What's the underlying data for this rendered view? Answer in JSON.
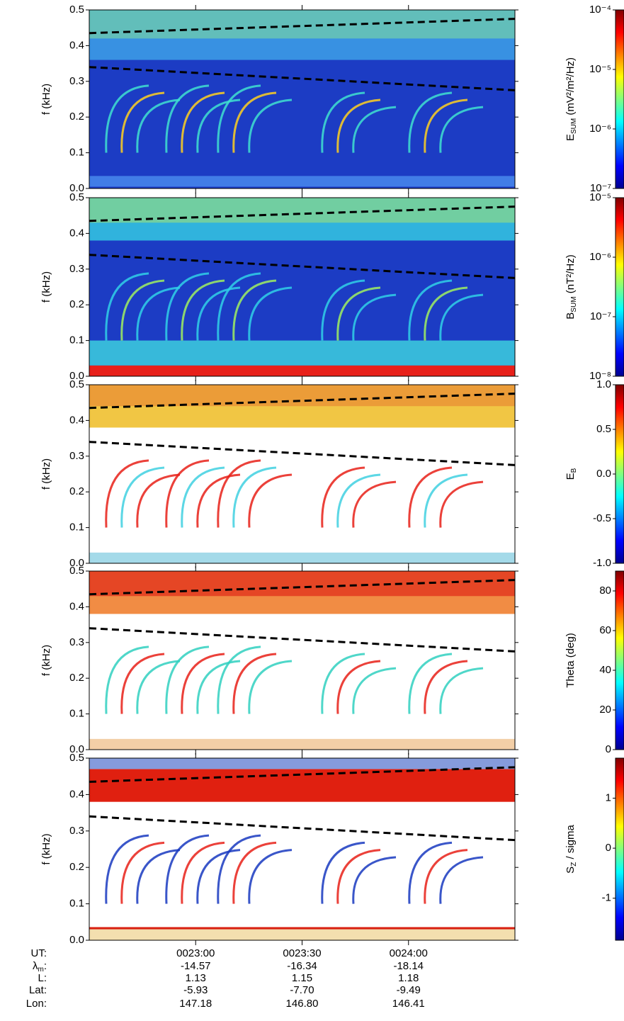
{
  "chart_data": [
    {
      "type": "spectrogram",
      "ylabel": "f (kHz)",
      "ylim": [
        0,
        0.5
      ],
      "yticks": [
        {
          "value": 0,
          "label": "0.0"
        },
        0.1,
        0.2,
        0.3,
        0.4,
        0.5
      ],
      "xlim": [
        30,
        150
      ],
      "colorbar": {
        "label": {
          "main": "E",
          "sub": "SUM",
          "rest": " (mV²/m²/Hz)"
        },
        "scale": "log",
        "lim": [
          1e-07,
          0.0001
        ],
        "ticks": [
          {
            "value": 1e-07,
            "label": "10⁻⁷"
          },
          {
            "value": 1e-06,
            "label": "10⁻⁶"
          },
          {
            "value": 1e-05,
            "label": "10⁻⁵"
          },
          {
            "value": 0.0001,
            "label": "10⁻⁴"
          }
        ]
      },
      "reference_lines": [
        {
          "x": [
            30,
            150
          ],
          "values": [
            0.435,
            0.475
          ]
        },
        {
          "x": [
            30,
            150
          ],
          "values": [
            0.34,
            0.275
          ]
        }
      ]
    },
    {
      "type": "spectrogram",
      "ylabel": "f (kHz)",
      "ylim": [
        0,
        0.5
      ],
      "yticks": [
        {
          "value": 0,
          "label": "0.0"
        },
        0.1,
        0.2,
        0.3,
        0.4,
        0.5
      ],
      "xlim": [
        30,
        150
      ],
      "colorbar": {
        "label": {
          "main": "B",
          "sub": "SUM",
          "rest": " (nT²/Hz)"
        },
        "scale": "log",
        "lim": [
          1e-08,
          1e-05
        ],
        "ticks": [
          {
            "value": 1e-08,
            "label": "10⁻⁸"
          },
          {
            "value": 1e-07,
            "label": "10⁻⁷"
          },
          {
            "value": 1e-06,
            "label": "10⁻⁶"
          },
          {
            "value": 1e-05,
            "label": "10⁻⁵"
          }
        ]
      },
      "reference_lines": [
        {
          "x": [
            30,
            150
          ],
          "values": [
            0.435,
            0.475
          ]
        },
        {
          "x": [
            30,
            150
          ],
          "values": [
            0.34,
            0.275
          ]
        }
      ]
    },
    {
      "type": "spectrogram",
      "ylabel": "f (kHz)",
      "ylim": [
        0,
        0.5
      ],
      "yticks": [
        {
          "value": 0,
          "label": "0.0"
        },
        0.1,
        0.2,
        0.3,
        0.4,
        0.5
      ],
      "xlim": [
        30,
        150
      ],
      "colorbar": {
        "label": {
          "main": "E",
          "sub": "B"
        },
        "scale": "linear",
        "lim": [
          -1,
          1
        ],
        "ticks": [
          {
            "value": -1,
            "label": "-1.0"
          },
          -0.5,
          {
            "value": 0,
            "label": "0.0"
          },
          0.5,
          {
            "value": 1,
            "label": "1.0"
          }
        ]
      },
      "reference_lines": [
        {
          "x": [
            30,
            150
          ],
          "values": [
            0.435,
            0.475
          ]
        },
        {
          "x": [
            30,
            150
          ],
          "values": [
            0.34,
            0.275
          ]
        }
      ]
    },
    {
      "type": "spectrogram",
      "ylabel": "f (kHz)",
      "ylim": [
        0,
        0.5
      ],
      "yticks": [
        {
          "value": 0,
          "label": "0.0"
        },
        0.1,
        0.2,
        0.3,
        0.4,
        0.5
      ],
      "xlim": [
        30,
        150
      ],
      "colorbar": {
        "label": "Theta (deg)",
        "scale": "linear",
        "lim": [
          0,
          90
        ],
        "ticks": [
          0,
          20,
          40,
          60,
          80
        ]
      },
      "reference_lines": [
        {
          "x": [
            30,
            150
          ],
          "values": [
            0.435,
            0.475
          ]
        },
        {
          "x": [
            30,
            150
          ],
          "values": [
            0.34,
            0.275
          ]
        }
      ]
    },
    {
      "type": "spectrogram",
      "ylabel": "f (kHz)",
      "ylim": [
        0,
        0.5
      ],
      "yticks": [
        {
          "value": 0,
          "label": "0.0"
        },
        0.1,
        0.2,
        0.3,
        0.4,
        0.5
      ],
      "xlim": [
        30,
        150
      ],
      "xticks": [
        {
          "value": 60,
          "label": "0023:00"
        },
        {
          "value": 90,
          "label": "0023:30"
        },
        {
          "value": 120,
          "label": "0024:00"
        }
      ],
      "colorbar": {
        "label": {
          "main": "S",
          "sub": "Z",
          "rest": " / sigma"
        },
        "scale": "linear",
        "lim": [
          -1.84,
          1.8
        ],
        "ticks": [
          -1,
          0,
          1
        ]
      },
      "reference_lines": [
        {
          "x": [
            30,
            150
          ],
          "values": [
            0.435,
            0.475
          ]
        },
        {
          "x": [
            30,
            150
          ],
          "values": [
            0.34,
            0.275
          ]
        }
      ]
    }
  ],
  "footer": {
    "ut_label": "UT:",
    "rows": [
      {
        "label": {
          "main": "λ",
          "sub": "m",
          "rest": ":"
        },
        "values": [
          "-14.57",
          "-16.34",
          "-18.14"
        ]
      },
      {
        "label": "L:",
        "values": [
          "1.13",
          "1.15",
          "1.18"
        ]
      },
      {
        "label": "Lat:",
        "values": [
          "-5.93",
          "-7.70",
          "-9.49"
        ]
      },
      {
        "label": "Lon:",
        "values": [
          "147.18",
          "146.80",
          "146.41"
        ]
      }
    ]
  }
}
